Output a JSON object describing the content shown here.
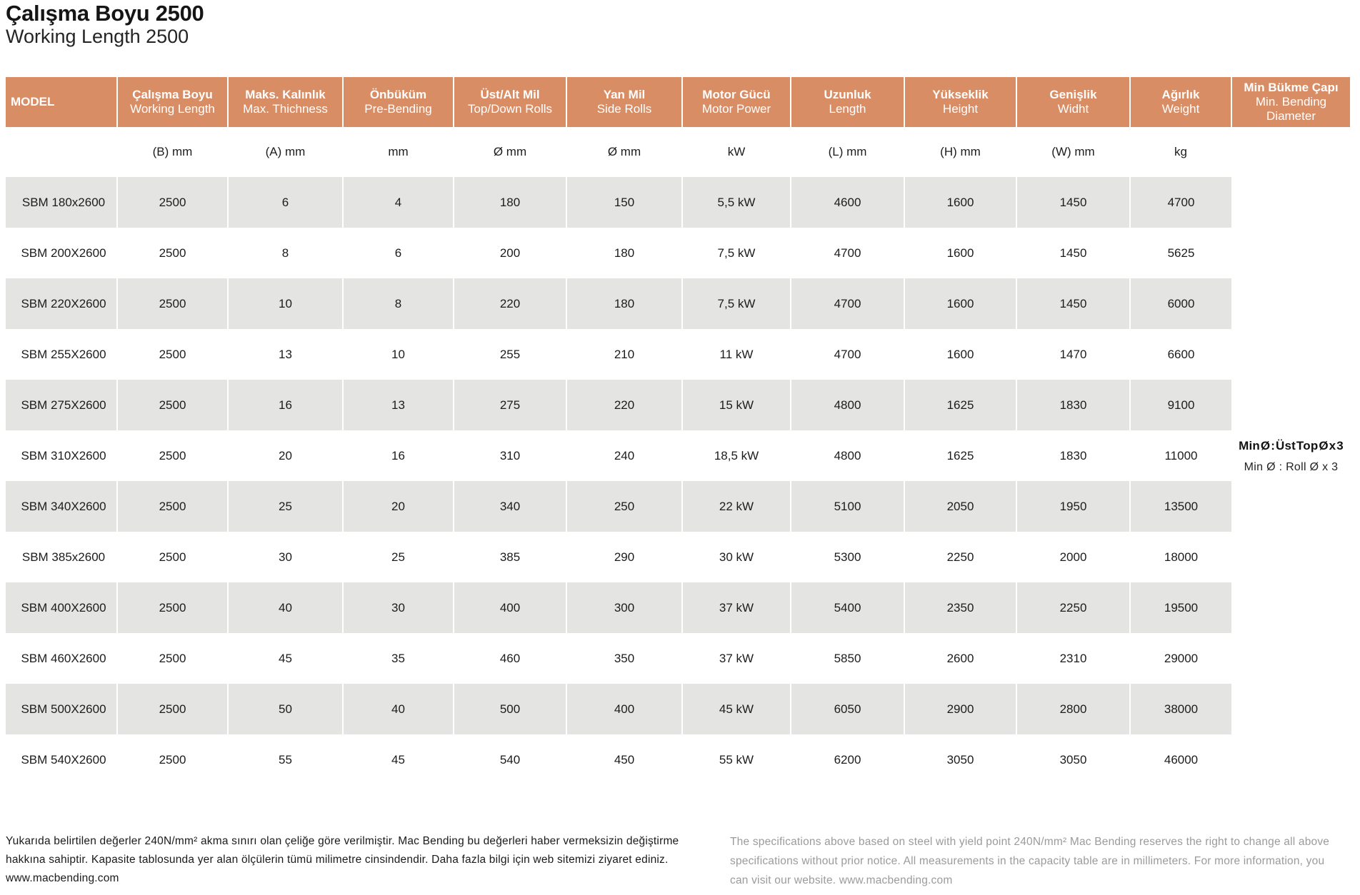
{
  "title": {
    "tr": "Çalışma Boyu 2500",
    "en": "Working Length 2500"
  },
  "table": {
    "columns": [
      {
        "id": "model",
        "tr": "MODEL",
        "en": "",
        "unit": ""
      },
      {
        "id": "working-length",
        "tr": "Çalışma Boyu",
        "en": "Working Length",
        "unit": "(B) mm"
      },
      {
        "id": "max-thickness",
        "tr": "Maks. Kalınlık",
        "en": "Max. Thichness",
        "unit": "(A) mm"
      },
      {
        "id": "pre-bending",
        "tr": "Önbüküm",
        "en": "Pre-Bending",
        "unit": "mm"
      },
      {
        "id": "top-down-rolls",
        "tr": "Üst/Alt Mil",
        "en": "Top/Down Rolls",
        "unit": "Ø mm"
      },
      {
        "id": "side-rolls",
        "tr": "Yan Mil",
        "en": "Side Rolls",
        "unit": "Ø mm"
      },
      {
        "id": "motor-power",
        "tr": "Motor Gücü",
        "en": "Motor Power",
        "unit": "kW"
      },
      {
        "id": "length",
        "tr": "Uzunluk",
        "en": "Length",
        "unit": "(L) mm"
      },
      {
        "id": "height",
        "tr": "Yükseklik",
        "en": "Height",
        "unit": "(H) mm"
      },
      {
        "id": "width",
        "tr": "Genişlik",
        "en": "Widht",
        "unit": "(W) mm"
      },
      {
        "id": "weight",
        "tr": "Ağırlık",
        "en": "Weight",
        "unit": "kg"
      },
      {
        "id": "min-bending-diameter",
        "tr": "Min Bükme Çapı",
        "en": "Min. Bending Diameter",
        "unit": ""
      }
    ],
    "rows": [
      {
        "model": "SBM 180x2600",
        "values": [
          "2500",
          "6",
          "4",
          "180",
          "150",
          "5,5 kW",
          "4600",
          "1600",
          "1450",
          "4700"
        ]
      },
      {
        "model": "SBM 200X2600",
        "values": [
          "2500",
          "8",
          "6",
          "200",
          "180",
          "7,5 kW",
          "4700",
          "1600",
          "1450",
          "5625"
        ]
      },
      {
        "model": "SBM 220X2600",
        "values": [
          "2500",
          "10",
          "8",
          "220",
          "180",
          "7,5 kW",
          "4700",
          "1600",
          "1450",
          "6000"
        ]
      },
      {
        "model": "SBM 255X2600",
        "values": [
          "2500",
          "13",
          "10",
          "255",
          "210",
          "11 kW",
          "4700",
          "1600",
          "1470",
          "6600"
        ]
      },
      {
        "model": "SBM 275X2600",
        "values": [
          "2500",
          "16",
          "13",
          "275",
          "220",
          "15 kW",
          "4800",
          "1625",
          "1830",
          "9100"
        ]
      },
      {
        "model": "SBM 310X2600",
        "values": [
          "2500",
          "20",
          "16",
          "310",
          "240",
          "18,5 kW",
          "4800",
          "1625",
          "1830",
          "11000"
        ]
      },
      {
        "model": "SBM 340X2600",
        "values": [
          "2500",
          "25",
          "20",
          "340",
          "250",
          "22 kW",
          "5100",
          "2050",
          "1950",
          "13500"
        ]
      },
      {
        "model": "SBM 385x2600",
        "values": [
          "2500",
          "30",
          "25",
          "385",
          "290",
          "30 kW",
          "5300",
          "2250",
          "2000",
          "18000"
        ]
      },
      {
        "model": "SBM 400X2600",
        "values": [
          "2500",
          "40",
          "30",
          "400",
          "300",
          "37 kW",
          "5400",
          "2350",
          "2250",
          "19500"
        ]
      },
      {
        "model": "SBM 460X2600",
        "values": [
          "2500",
          "45",
          "35",
          "460",
          "350",
          "37 kW",
          "5850",
          "2600",
          "2310",
          "29000"
        ]
      },
      {
        "model": "SBM 500X2600",
        "values": [
          "2500",
          "50",
          "40",
          "500",
          "400",
          "45 kW",
          "6050",
          "2900",
          "2800",
          "38000"
        ]
      },
      {
        "model": "SBM 540X2600",
        "values": [
          "2500",
          "55",
          "45",
          "540",
          "450",
          "55 kW",
          "6200",
          "3050",
          "3050",
          "46000"
        ]
      }
    ]
  },
  "annotation": {
    "line1": "Min Ø : Üst Top Ø x 3",
    "line2": "Min Ø : Roll Ø x 3"
  },
  "footer": {
    "tr": "Yukarıda belirtilen değerler 240N/mm² akma sınırı olan çeliğe göre verilmiştir. Mac Bending bu değerleri haber vermeksizin değiştirme hakkına sahiptir. Kapasite tablosunda yer alan ölçülerin tümü milimetre cinsindendir. Daha fazla bilgi için web sitemizi ziyaret ediniz. www.macbending.com",
    "en": "The specifications above based on steel with yield point 240N/mm² Mac Bending reserves the right to change all above specifications without prior notice. All measurements in the capacity table are in millimeters. For more information, you can visit our website. www.macbending.com"
  },
  "colors": {
    "header_bg": "#D98D65",
    "stripe_bg": "#E4E4E2",
    "header_text": "#ffffff",
    "body_text": "#1c1c1c",
    "footer_en_text": "#9b9b9b"
  }
}
